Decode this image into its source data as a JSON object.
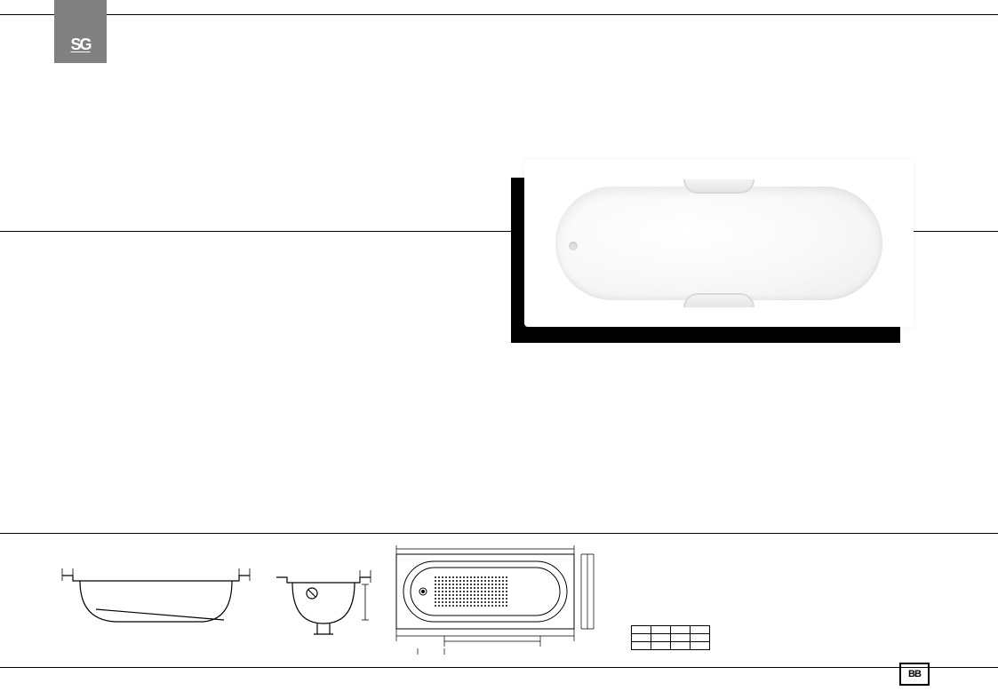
{
  "logo": "SG",
  "brand_box": "BB",
  "product": {
    "shadow_color": "#000000",
    "body_color": "#ffffff"
  },
  "technical": {
    "line_color": "#000000",
    "line_width": 1
  },
  "dim_table": {
    "columns": [
      "",
      "",
      "",
      ""
    ],
    "rows": [
      [
        "",
        "",
        "",
        ""
      ],
      [
        "",
        "",
        "",
        ""
      ],
      [
        "",
        "",
        "",
        ""
      ]
    ]
  }
}
